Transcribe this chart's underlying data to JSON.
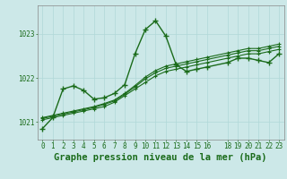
{
  "title": "Graphe pression niveau de la mer (hPa)",
  "bg_color": "#cce8e8",
  "line_color": "#1a6b1a",
  "grid_color": "#b0d8d8",
  "ylim": [
    1020.6,
    1023.65
  ],
  "xlim": [
    -0.5,
    23.5
  ],
  "yticks": [
    1021,
    1022,
    1023
  ],
  "xticks": [
    0,
    1,
    2,
    3,
    4,
    5,
    6,
    7,
    8,
    9,
    10,
    11,
    12,
    13,
    14,
    15,
    16,
    18,
    19,
    20,
    21,
    22,
    23
  ],
  "series_main": {
    "x": [
      0,
      1,
      2,
      3,
      4,
      5,
      6,
      7,
      8,
      9,
      10,
      11,
      12,
      13,
      14,
      15,
      16,
      18,
      19,
      20,
      21,
      22,
      23
    ],
    "y": [
      1020.85,
      1021.1,
      1021.75,
      1021.82,
      1021.72,
      1021.52,
      1021.55,
      1021.65,
      1021.85,
      1022.55,
      1023.1,
      1023.3,
      1022.95,
      1022.3,
      1022.15,
      1022.2,
      1022.25,
      1022.35,
      1022.45,
      1022.45,
      1022.4,
      1022.35,
      1022.55
    ]
  },
  "series_linear": [
    {
      "x": [
        0,
        1,
        2,
        3,
        4,
        5,
        6,
        7,
        8,
        9,
        10,
        11,
        12,
        13,
        14,
        15,
        16,
        18,
        19,
        20,
        21,
        22,
        23
      ],
      "y": [
        1021.05,
        1021.1,
        1021.15,
        1021.2,
        1021.25,
        1021.3,
        1021.35,
        1021.45,
        1021.6,
        1021.75,
        1021.9,
        1022.05,
        1022.15,
        1022.2,
        1022.25,
        1022.3,
        1022.35,
        1022.45,
        1022.5,
        1022.55,
        1022.55,
        1022.6,
        1022.65
      ]
    },
    {
      "x": [
        0,
        1,
        2,
        3,
        4,
        5,
        6,
        7,
        8,
        9,
        10,
        11,
        12,
        13,
        14,
        15,
        16,
        18,
        19,
        20,
        21,
        22,
        23
      ],
      "y": [
        1021.08,
        1021.13,
        1021.18,
        1021.23,
        1021.28,
        1021.33,
        1021.4,
        1021.48,
        1021.63,
        1021.8,
        1021.98,
        1022.12,
        1022.22,
        1022.27,
        1022.32,
        1022.37,
        1022.42,
        1022.52,
        1022.57,
        1022.62,
        1022.62,
        1022.67,
        1022.72
      ]
    },
    {
      "x": [
        0,
        1,
        2,
        3,
        4,
        5,
        6,
        7,
        8,
        9,
        10,
        11,
        12,
        13,
        14,
        15,
        16,
        18,
        19,
        20,
        21,
        22,
        23
      ],
      "y": [
        1021.1,
        1021.15,
        1021.2,
        1021.25,
        1021.3,
        1021.35,
        1021.42,
        1021.5,
        1021.65,
        1021.83,
        1022.02,
        1022.17,
        1022.27,
        1022.32,
        1022.37,
        1022.42,
        1022.47,
        1022.57,
        1022.62,
        1022.67,
        1022.67,
        1022.72,
        1022.77
      ]
    }
  ],
  "title_fontsize": 7.5,
  "tick_fontsize": 5.5,
  "title_color": "#1a6b1a",
  "tick_color": "#1a6b1a",
  "spine_color": "#888888"
}
